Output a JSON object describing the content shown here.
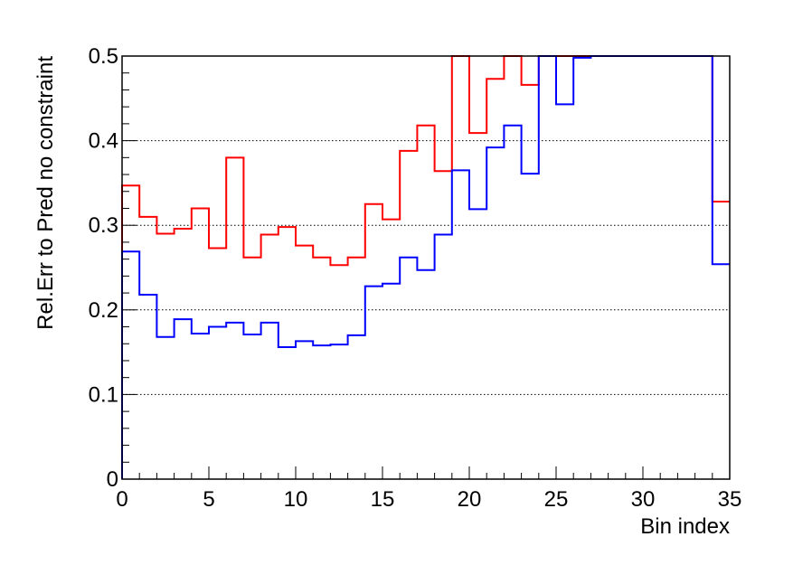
{
  "chart_data": {
    "type": "line",
    "xlabel": "Bin index",
    "ylabel": "Rel.Err to Pred no constraint",
    "xlim": [
      0,
      35
    ],
    "ylim": [
      0,
      0.5
    ],
    "x_ticks": [
      "0",
      "5",
      "10",
      "15",
      "20",
      "25",
      "30",
      "35"
    ],
    "y_ticks": [
      "0",
      "0.1",
      "0.2",
      "0.3",
      "0.4",
      "0.5"
    ],
    "grid": "horizontal-dotted",
    "step": true,
    "series": [
      {
        "color": "#ff0000",
        "values": [
          0.347,
          0.31,
          0.29,
          0.296,
          0.32,
          0.273,
          0.38,
          0.262,
          0.289,
          0.298,
          0.276,
          0.262,
          0.253,
          0.262,
          0.325,
          0.307,
          0.388,
          0.418,
          0.364,
          0.5,
          0.409,
          0.473,
          0.5,
          0.466,
          0.5,
          0.5,
          0.5,
          0.5,
          0.5,
          0.5,
          0.5,
          0.5,
          0.5,
          0.5,
          0.328
        ]
      },
      {
        "color": "#0000ff",
        "values": [
          0.269,
          0.218,
          0.168,
          0.189,
          0.172,
          0.18,
          0.185,
          0.171,
          0.185,
          0.156,
          0.163,
          0.158,
          0.159,
          0.17,
          0.228,
          0.231,
          0.262,
          0.247,
          0.289,
          0.365,
          0.319,
          0.392,
          0.418,
          0.361,
          0.5,
          0.443,
          0.498,
          0.5,
          0.5,
          0.5,
          0.5,
          0.5,
          0.5,
          0.5,
          0.254
        ]
      }
    ]
  }
}
